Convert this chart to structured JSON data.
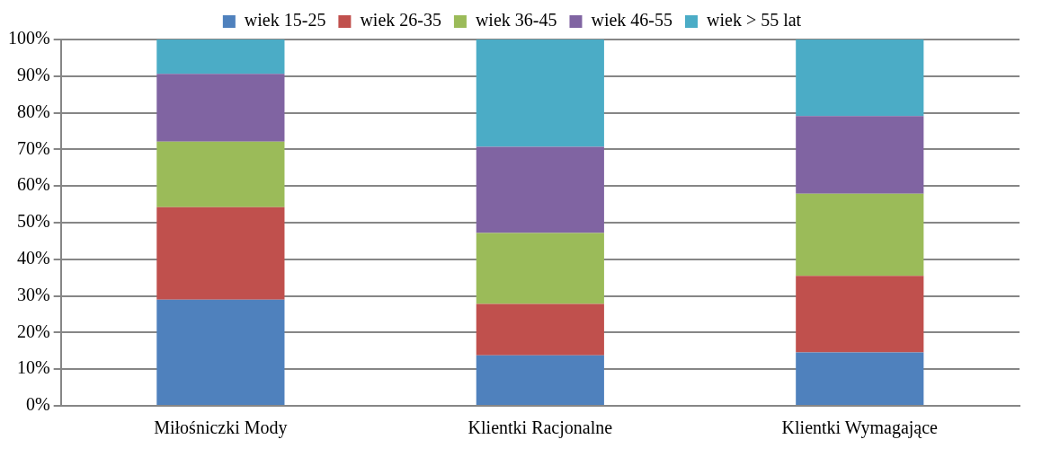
{
  "chart_data": {
    "type": "bar",
    "stacked": true,
    "legend": "top",
    "grid": "y",
    "categories": [
      "Miłośniczki Mody",
      "Klientki Racjonalne",
      "Klientki Wymagające"
    ],
    "series": [
      {
        "name": "wiek 15-25",
        "color": "#4f81bd",
        "values": [
          29.0,
          13.8,
          14.6
        ]
      },
      {
        "name": "wiek 26-35",
        "color": "#c0504d",
        "values": [
          25.2,
          14.0,
          20.9
        ]
      },
      {
        "name": "wiek 36-45",
        "color": "#9bbb59",
        "values": [
          17.9,
          19.4,
          22.4
        ]
      },
      {
        "name": "wiek 46-55",
        "color": "#8064a2",
        "values": [
          18.5,
          23.5,
          21.2
        ]
      },
      {
        "name": "wiek > 55 lat",
        "color": "#4bacc6",
        "values": [
          9.4,
          29.3,
          20.9
        ]
      }
    ],
    "ylim": [
      0,
      100
    ],
    "yticks": [
      {
        "value": 0,
        "label": "0%"
      },
      {
        "value": 10,
        "label": "10%"
      },
      {
        "value": 20,
        "label": "20%"
      },
      {
        "value": 30,
        "label": "30%"
      },
      {
        "value": 40,
        "label": "40%"
      },
      {
        "value": 50,
        "label": "50%"
      },
      {
        "value": 60,
        "label": "60%"
      },
      {
        "value": 70,
        "label": "70%"
      },
      {
        "value": 80,
        "label": "80%"
      },
      {
        "value": 90,
        "label": "90%"
      },
      {
        "value": 100,
        "label": "100%"
      }
    ]
  }
}
